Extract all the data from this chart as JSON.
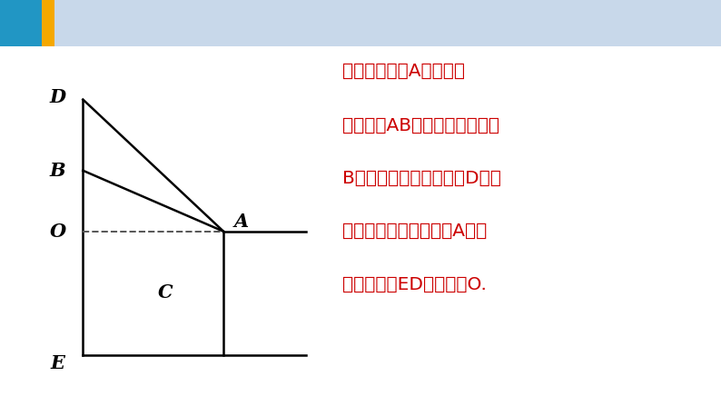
{
  "bg_color": "#ffffff",
  "header_bg": "#c8d8ea",
  "header_blue_rect": {
    "color": "#2196c4"
  },
  "header_yellow_rect": {
    "color": "#f5a800"
  },
  "text_color": "#cc0000",
  "text_lines": [
    "解：如图，设A是云梯的",
    "下端点，AB是伸长后的云梯，",
    "B是第一次救人的地点，D是第",
    "二次救人的地点，过点A的水",
    "平线与楼房ED的交点为O."
  ],
  "line_color": "#000000",
  "dashed_color": "#555555",
  "label_color": "#000000",
  "label_fontsize": 15
}
